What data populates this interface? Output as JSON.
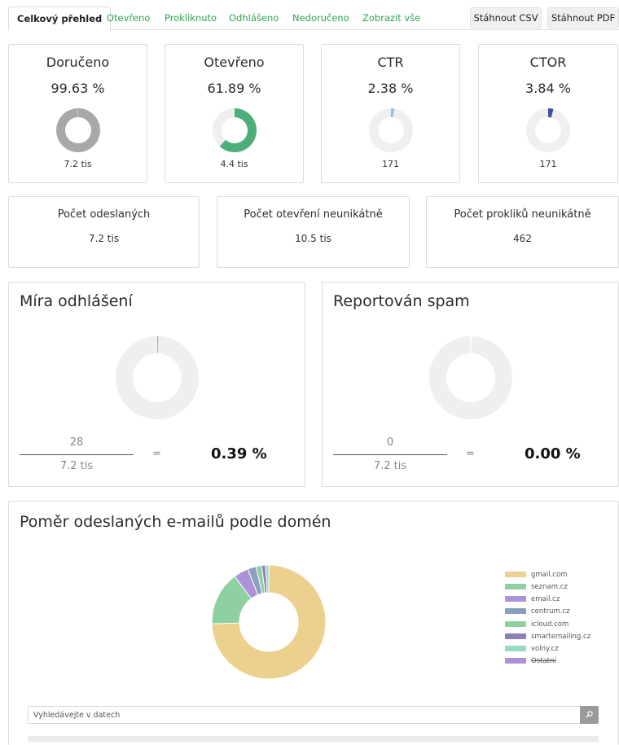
{
  "tabs": [
    {
      "label": "Celkový přehled",
      "active": true
    },
    {
      "label": "Otevřeno"
    },
    {
      "label": "Prokliknuto"
    },
    {
      "label": "Odhlášeno"
    },
    {
      "label": "Nedoručeno"
    },
    {
      "label": "Zobrazit vše"
    }
  ],
  "downloads": {
    "csv": "Stáhnout CSV",
    "pdf": "Stáhnout PDF"
  },
  "stat_cards": [
    {
      "title": "Doručeno",
      "value": "99.63 %",
      "sub": "7.2 tis",
      "ratio": 0.9963,
      "color": "#a8a8a8"
    },
    {
      "title": "Otevřeno",
      "value": "61.89 %",
      "sub": "4.4 tis",
      "ratio": 0.6189,
      "color": "#4caf7a"
    },
    {
      "title": "CTR",
      "value": "2.38 %",
      "sub": "171",
      "ratio": 0.0238,
      "color": "#8fc1e3"
    },
    {
      "title": "CTOR",
      "value": "3.84 %",
      "sub": "171",
      "ratio": 0.0384,
      "color": "#3f51a3"
    }
  ],
  "count_cards": [
    {
      "title": "Počet odeslaných",
      "value": "7.2 tis"
    },
    {
      "title": "Počet otevření neunikátně",
      "value": "10.5 tis"
    },
    {
      "title": "Počet prokliků neunikátně",
      "value": "462"
    }
  ],
  "rate_cards": [
    {
      "title": "Míra odhlášení",
      "numerator": "28",
      "denominator": "7.2 tis",
      "equals": "=",
      "result": "0.39 %",
      "ratio": 0.0039
    },
    {
      "title": "Reportován spam",
      "numerator": "0",
      "denominator": "7.2 tis",
      "equals": "=",
      "result": "0.00 %",
      "ratio": 0.0
    }
  ],
  "domains": {
    "title": "Poměr odeslaných e-mailů podle domén",
    "legend": [
      {
        "label": "gmail.com",
        "color": "#ecd08e",
        "hidden": false
      },
      {
        "label": "seznam.cz",
        "color": "#8fd0a2",
        "hidden": false
      },
      {
        "label": "email.cz",
        "color": "#ad92d8",
        "hidden": false
      },
      {
        "label": "centrum.cz",
        "color": "#87a0bd",
        "hidden": false
      },
      {
        "label": "icloud.com",
        "color": "#8fd0a2",
        "hidden": false
      },
      {
        "label": "smartemailing.cz",
        "color": "#8f7dba",
        "hidden": false
      },
      {
        "label": "volny.cz",
        "color": "#98d9c9",
        "hidden": false
      },
      {
        "label": "Ostatní",
        "color": "#ad92d8",
        "hidden": true
      }
    ]
  },
  "search": {
    "placeholder": "Vyhledávejte v datech",
    "icon": "search-icon"
  },
  "chart_data": {
    "type": "pie",
    "donut": true,
    "categories": [
      "gmail.com",
      "seznam.cz",
      "email.cz",
      "centrum.cz",
      "icloud.com",
      "smartemailing.cz",
      "volny.cz",
      "Ostatní"
    ],
    "values": [
      74.5,
      15.3,
      4.2,
      2.4,
      1.6,
      1.1,
      0.9,
      0
    ],
    "title": "Poměr odeslaných e-mailů podle domén",
    "legend_position": "right"
  }
}
